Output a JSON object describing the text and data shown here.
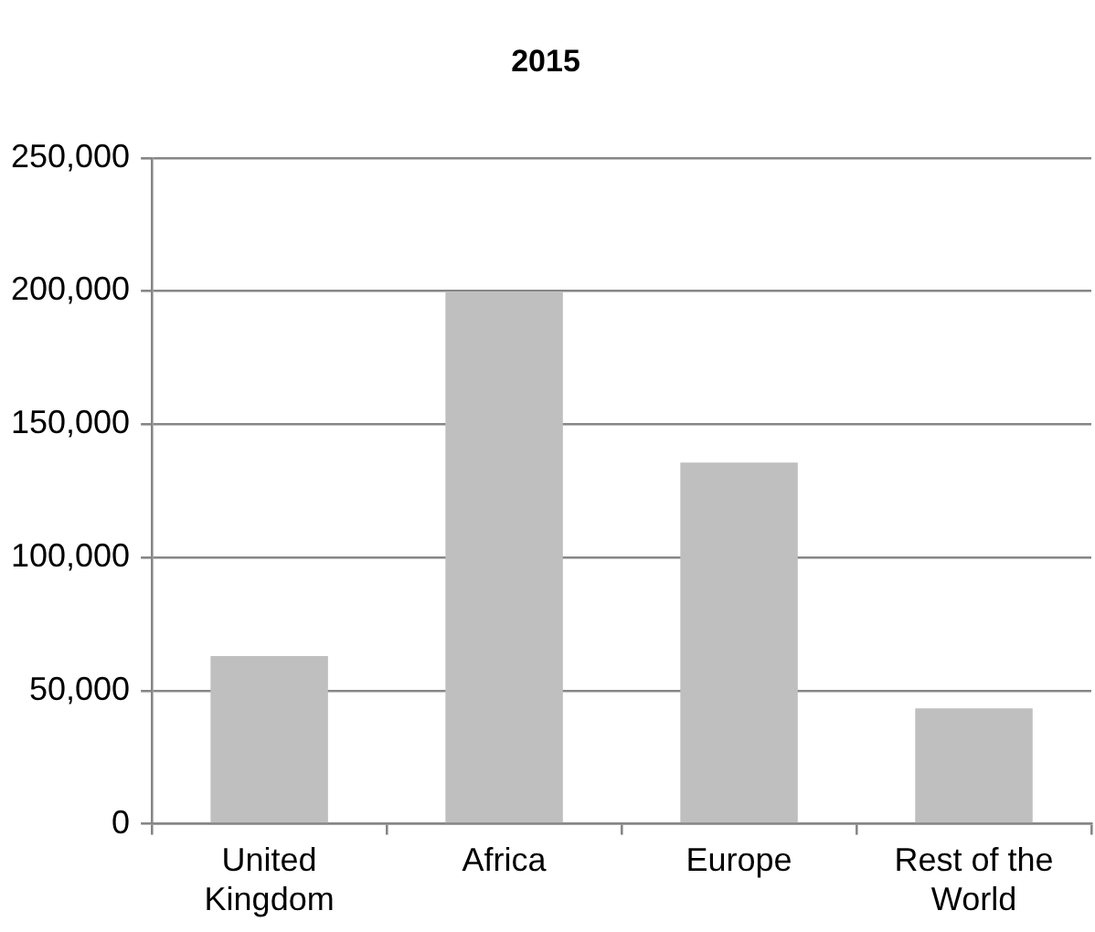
{
  "chart_data": {
    "type": "bar",
    "title": "2015",
    "categories": [
      "United Kingdom",
      "Africa",
      "Europe",
      "Rest of the World"
    ],
    "values": [
      63000,
      199500,
      135600,
      43300
    ],
    "color": "#bfbfbf",
    "ylim": [
      0,
      250000
    ],
    "yticks": [
      0,
      {
        "value": 50000,
        "label": "50,000"
      },
      {
        "value": 100000,
        "label": "100,000"
      },
      {
        "value": 150000,
        "label": "150,000"
      },
      {
        "value": 200000,
        "label": "200,000"
      },
      {
        "value": 250000,
        "label": "250,000"
      }
    ],
    "grid": "y",
    "legend": false
  }
}
